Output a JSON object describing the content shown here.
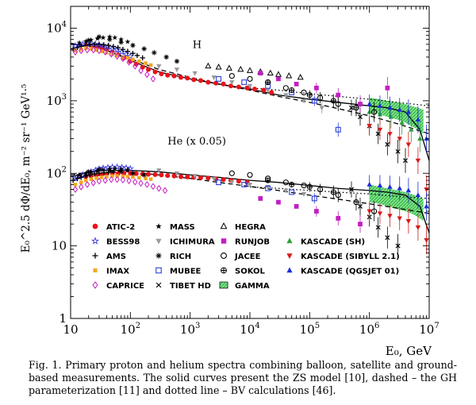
{
  "caption": "Fig. 1. Primary proton and helium spectra combining balloon, satellite and ground-based measurements. The solid curves present the ZS model [10], dashed – the GH parameterization [11] and dotted line – BV calculations [46].",
  "chart_data": {
    "type": "scatter",
    "x_scale": "log",
    "y_scale": "log",
    "xlim": [
      10,
      10000000
    ],
    "ylim": [
      1,
      20000
    ],
    "xlabel": "E₀, GeV",
    "ylabel": "E₀^2.5 dΦ/dE₀,  m⁻² sr⁻¹ GeV¹·⁵",
    "x_ticks": [
      {
        "value": 10,
        "base": "10",
        "exp": ""
      },
      {
        "value": 100,
        "base": "10",
        "exp": "2"
      },
      {
        "value": 1000,
        "base": "10",
        "exp": "3"
      },
      {
        "value": 10000,
        "base": "10",
        "exp": "4"
      },
      {
        "value": 100000,
        "base": "10",
        "exp": "5"
      },
      {
        "value": 1000000,
        "base": "10",
        "exp": "6"
      },
      {
        "value": 10000000,
        "base": "10",
        "exp": "7"
      }
    ],
    "y_ticks": [
      {
        "value": 1,
        "base": "1",
        "exp": ""
      },
      {
        "value": 10,
        "base": "10",
        "exp": ""
      },
      {
        "value": 100,
        "base": "10",
        "exp": "2"
      },
      {
        "value": 1000,
        "base": "10",
        "exp": "3"
      },
      {
        "value": 10000,
        "base": "10",
        "exp": "4"
      }
    ],
    "annotations": [
      {
        "text": "H",
        "x": 1100,
        "y": 5300
      },
      {
        "text": "He (x 0.05)",
        "x": 420,
        "y": 250
      }
    ],
    "legend": {
      "placement": "bottom-left",
      "entries": [
        {
          "name": "ATIC-2",
          "marker": "circle",
          "color": "#e8131a"
        },
        {
          "name": "BESS98",
          "marker": "star-open",
          "color": "#3a3adb"
        },
        {
          "name": "AMS",
          "marker": "plus",
          "color": "#000000"
        },
        {
          "name": "IMAX",
          "marker": "square-small",
          "color": "#f5a623"
        },
        {
          "name": "CAPRICE",
          "marker": "diamond-open",
          "color": "#c21fc2"
        },
        {
          "name": "MASS",
          "marker": "star",
          "color": "#000000"
        },
        {
          "name": "ICHIMURA",
          "marker": "triangle-down",
          "color": "#9a9a9a"
        },
        {
          "name": "RICH",
          "marker": "asterisk",
          "color": "#000000"
        },
        {
          "name": "MUBEE",
          "marker": "square-open",
          "color": "#2b3fd6"
        },
        {
          "name": "TIBET HD",
          "marker": "x",
          "color": "#000000"
        },
        {
          "name": "HEGRA",
          "marker": "triangle-open",
          "color": "#000000"
        },
        {
          "name": "RUNJOB",
          "marker": "square",
          "color": "#c21fc2"
        },
        {
          "name": "JACEE",
          "marker": "circle-open",
          "color": "#000000"
        },
        {
          "name": "SOKOL",
          "marker": "circle-plus",
          "color": "#000000"
        },
        {
          "name": "GAMMA",
          "marker": "band",
          "color": "#2ecc40"
        },
        {
          "name": "KASCADE (SH)",
          "marker": "triangle",
          "color": "#2e9e3a"
        },
        {
          "name": "KASCADE (SIBYLL 2.1)",
          "marker": "triangle-down",
          "color": "#d61a1a"
        },
        {
          "name": "KASCADE (QGSJET 01)",
          "marker": "triangle",
          "color": "#1a2fd6"
        }
      ]
    },
    "series": [
      {
        "name": "ATIC-2",
        "marker": "circle",
        "color": "#e8131a",
        "x": [
          18,
          22,
          27,
          33,
          40,
          50,
          62,
          78,
          100,
          125,
          160,
          200,
          260,
          330,
          420,
          540,
          700,
          900,
          1150,
          1500,
          2000,
          2700,
          3600,
          4800,
          6500,
          9000,
          12000,
          17000,
          23000,
          18,
          22,
          27,
          33,
          40,
          50,
          62,
          78,
          100,
          125,
          160,
          200,
          260,
          330,
          420,
          540,
          700,
          900,
          1150,
          1500,
          2000,
          2700,
          3600,
          4800,
          6500,
          9000
        ],
        "y": [
          5800,
          5700,
          5600,
          5400,
          5100,
          4700,
          4300,
          3900,
          3500,
          3200,
          2900,
          2700,
          2500,
          2350,
          2250,
          2200,
          2100,
          2050,
          1950,
          1900,
          1800,
          1750,
          1700,
          1600,
          1550,
          1500,
          1450,
          1400,
          1300,
          90,
          92,
          94,
          96,
          97,
          98,
          99,
          100,
          100,
          99,
          98,
          97,
          96,
          95,
          93,
          92,
          90,
          89,
          88,
          87,
          86,
          84,
          82,
          80,
          78,
          75
        ]
      },
      {
        "name": "BESS98",
        "marker": "star-open",
        "color": "#3a3adb",
        "x": [
          12,
          14,
          16,
          19,
          22,
          26,
          30,
          35,
          42,
          50,
          60,
          72,
          85,
          100,
          12,
          14,
          16,
          19,
          22,
          26,
          30,
          35,
          42,
          50,
          60,
          72,
          85,
          100
        ],
        "y": [
          5700,
          5900,
          6000,
          6100,
          6100,
          6000,
          5900,
          5700,
          5500,
          5200,
          5000,
          4700,
          4400,
          4100,
          85,
          90,
          95,
          100,
          105,
          110,
          115,
          118,
          120,
          122,
          122,
          121,
          119,
          116
        ]
      },
      {
        "name": "AMS",
        "marker": "plus",
        "color": "#000000",
        "x": [
          11,
          13,
          15,
          18,
          21,
          25,
          30,
          36,
          43,
          52,
          62,
          75,
          90,
          110,
          130,
          160,
          11,
          13,
          15,
          18,
          21,
          25,
          30,
          36,
          43,
          52
        ],
        "y": [
          5200,
          5400,
          5600,
          5800,
          6000,
          6000,
          6000,
          5900,
          5800,
          5600,
          5400,
          5100,
          4800,
          4500,
          4200,
          3900,
          80,
          85,
          88,
          92,
          95,
          98,
          100,
          102,
          103,
          104
        ]
      },
      {
        "name": "IMAX",
        "marker": "square-small",
        "color": "#f5a623",
        "x": [
          12,
          15,
          18,
          22,
          27,
          33,
          40,
          50,
          60,
          75,
          90,
          110,
          140,
          180,
          220,
          12,
          15,
          18,
          22,
          27,
          33,
          40,
          50,
          60,
          75,
          90,
          110,
          140,
          180,
          220
        ],
        "y": [
          4900,
          5100,
          5300,
          5200,
          5000,
          4800,
          4600,
          4400,
          4200,
          4000,
          3900,
          3700,
          3500,
          3300,
          3100,
          70,
          75,
          80,
          83,
          86,
          88,
          90,
          92,
          92,
          91,
          90,
          89,
          87,
          85,
          83
        ]
      },
      {
        "name": "CAPRICE",
        "marker": "diamond-open",
        "color": "#c21fc2",
        "x": [
          12,
          15,
          19,
          24,
          30,
          38,
          48,
          60,
          75,
          95,
          120,
          150,
          190,
          240,
          12,
          15,
          19,
          24,
          30,
          38,
          48,
          60,
          75,
          95,
          120,
          150,
          190,
          240,
          300,
          380
        ],
        "y": [
          4700,
          4900,
          5000,
          5000,
          4900,
          4700,
          4400,
          4100,
          3800,
          3400,
          3000,
          2600,
          2300,
          2000,
          60,
          65,
          70,
          74,
          78,
          80,
          82,
          82,
          81,
          79,
          76,
          73,
          70,
          66,
          62,
          58
        ]
      },
      {
        "name": "MASS",
        "marker": "star",
        "color": "#000000",
        "x": [
          14,
          18,
          22,
          28,
          35,
          45,
          55,
          70,
          90,
          14,
          18,
          22,
          28,
          35,
          45,
          55,
          70,
          90
        ],
        "y": [
          6300,
          6600,
          6900,
          7200,
          7400,
          7600,
          7400,
          7000,
          6500,
          95,
          100,
          104,
          108,
          112,
          115,
          116,
          115,
          112
        ]
      },
      {
        "name": "ICHIMURA",
        "marker": "triangle-down",
        "color": "#9a9a9a",
        "x": [
          300,
          600,
          1200,
          2500,
          5000,
          10000,
          20000,
          40000,
          80000,
          160000,
          300,
          600,
          1200,
          2500,
          5000,
          10000,
          20000,
          40000,
          80000
        ],
        "y": [
          3000,
          2700,
          2400,
          2100,
          1800,
          1600,
          1400,
          1200,
          1000,
          800,
          110,
          100,
          92,
          84,
          76,
          70,
          65,
          58,
          52
        ]
      },
      {
        "name": "RICH",
        "marker": "asterisk",
        "color": "#000000",
        "x": [
          20,
          30,
          45,
          70,
          110,
          170,
          250,
          400,
          600,
          20,
          30,
          45,
          70,
          110,
          170
        ],
        "y": [
          6800,
          7600,
          7000,
          6400,
          5800,
          5200,
          4600,
          4000,
          3500,
          105,
          112,
          110,
          106,
          100,
          95
        ]
      },
      {
        "name": "MUBEE",
        "marker": "square-open",
        "color": "#2b3fd6",
        "x": [
          3000,
          8000,
          20000,
          50000,
          120000,
          300000,
          3000,
          8000,
          20000,
          50000,
          120000
        ],
        "y": [
          2000,
          1800,
          1600,
          1300,
          1000,
          400,
          75,
          70,
          62,
          55,
          45
        ]
      },
      {
        "name": "TIBET HD",
        "marker": "x",
        "color": "#000000",
        "x": [
          500000,
          700000,
          1000000,
          1400000,
          2000000,
          3000000,
          4000000,
          500000,
          700000,
          1000000,
          1400000,
          2000000,
          3000000
        ],
        "y": [
          800,
          600,
          450,
          350,
          250,
          200,
          150,
          60,
          35,
          25,
          18,
          13,
          10
        ]
      },
      {
        "name": "HEGRA",
        "marker": "triangle-open",
        "color": "#000000",
        "x": [
          2000,
          3000,
          4500,
          7000,
          10000,
          15000,
          22000,
          30000,
          45000,
          70000
        ],
        "y": [
          3000,
          2900,
          2800,
          2700,
          2600,
          2500,
          2400,
          2300,
          2200,
          2100
        ]
      },
      {
        "name": "RUNJOB",
        "marker": "square",
        "color": "#c21fc2",
        "x": [
          15000,
          30000,
          60000,
          130000,
          300000,
          700000,
          2000000,
          15000,
          30000,
          60000,
          130000,
          300000,
          700000
        ],
        "y": [
          2400,
          2000,
          1700,
          1500,
          1200,
          900,
          1500,
          45,
          40,
          35,
          30,
          24,
          20
        ]
      },
      {
        "name": "JACEE",
        "marker": "circle-open",
        "color": "#000000",
        "x": [
          5000,
          10000,
          20000,
          40000,
          80000,
          150000,
          300000,
          600000,
          1200000,
          5000,
          10000,
          20000,
          40000,
          80000,
          150000,
          300000,
          600000,
          1200000
        ],
        "y": [
          2200,
          2000,
          1800,
          1500,
          1300,
          1100,
          900,
          800,
          700,
          100,
          95,
          85,
          75,
          68,
          60,
          50,
          40,
          30
        ]
      },
      {
        "name": "SOKOL",
        "marker": "circle-plus",
        "color": "#000000",
        "x": [
          20000,
          50000,
          100000,
          250000,
          600000,
          20000,
          50000,
          100000,
          250000
        ],
        "y": [
          1800,
          1400,
          1200,
          1000,
          800,
          80,
          70,
          65,
          55
        ]
      },
      {
        "name": "GAMMA",
        "marker": "band",
        "color": "#2ecc40",
        "x": [
          1000000,
          1500000,
          2000000,
          3000000,
          4000000,
          5000000,
          6500000,
          8000000
        ],
        "y_low": [
          700,
          650,
          600,
          550,
          500,
          450,
          400,
          350
        ],
        "y_high": [
          1100,
          1050,
          1000,
          950,
          900,
          850,
          800,
          750
        ],
        "he_y_low": [
          40,
          38,
          35,
          32,
          30,
          28,
          25,
          22
        ],
        "he_y_high": [
          70,
          65,
          62,
          58,
          55,
          52,
          48,
          44
        ]
      },
      {
        "name": "KASCADE (SH)",
        "marker": "triangle",
        "color": "#2e9e3a",
        "x": [
          1000000,
          1500000,
          2300000,
          3500000,
          5000000,
          7000000
        ],
        "y": [
          700,
          650,
          600,
          500,
          400,
          300
        ]
      },
      {
        "name": "KASCADE (SIBYLL 2.1)",
        "marker": "triangle-down",
        "color": "#d61a1a",
        "x": [
          1000000,
          1500000,
          2200000,
          3200000,
          4500000,
          6500000,
          9000000,
          1000000,
          1500000,
          2200000,
          3200000,
          4500000,
          6500000,
          9000000
        ],
        "y": [
          450,
          400,
          350,
          300,
          250,
          150,
          60,
          30,
          28,
          26,
          24,
          22,
          18,
          12
        ]
      },
      {
        "name": "KASCADE (QGSJET 01)",
        "marker": "triangle",
        "color": "#1a2fd6",
        "x": [
          1000000,
          1500000,
          2200000,
          3200000,
          4500000,
          6500000,
          9000000,
          1000000,
          1500000,
          2200000,
          3200000,
          4500000,
          6500000,
          9000000
        ],
        "y": [
          900,
          850,
          800,
          750,
          700,
          550,
          300,
          70,
          68,
          65,
          62,
          58,
          50,
          35
        ]
      },
      {
        "name": "ZS model",
        "marker": "line-solid",
        "color": "#000000",
        "x": [
          10,
          30,
          100,
          300,
          1000,
          3000,
          10000,
          30000,
          100000,
          300000,
          1000000,
          2000000,
          4000000,
          7000000,
          10000000
        ],
        "y": [
          6000,
          5500,
          3600,
          2500,
          2000,
          1700,
          1450,
          1200,
          1050,
          950,
          850,
          800,
          700,
          400,
          150
        ],
        "he_y": [
          90,
          110,
          110,
          105,
          95,
          88,
          80,
          75,
          68,
          62,
          58,
          55,
          50,
          35,
          15
        ]
      },
      {
        "name": "GH parameterization",
        "marker": "line-dashed",
        "color": "#000000",
        "x": [
          10,
          30,
          100,
          300,
          1000,
          3000,
          10000,
          30000,
          100000,
          300000,
          1000000,
          3000000,
          10000000
        ],
        "y": [
          6200,
          5400,
          3800,
          2700,
          2100,
          1700,
          1400,
          1150,
          950,
          780,
          620,
          480,
          350
        ],
        "he_y": [
          95,
          110,
          105,
          95,
          85,
          75,
          66,
          58,
          50,
          44,
          38,
          33,
          28
        ]
      },
      {
        "name": "BV calculations",
        "marker": "line-dotted",
        "color": "#000000",
        "x": [
          10000,
          30000,
          100000,
          300000,
          1000000,
          3000000,
          10000000
        ],
        "y": [
          1500,
          1400,
          1250,
          1150,
          1050,
          950,
          850
        ],
        "he_y": [
          65,
          62,
          58,
          55,
          52,
          48,
          45
        ]
      }
    ]
  }
}
